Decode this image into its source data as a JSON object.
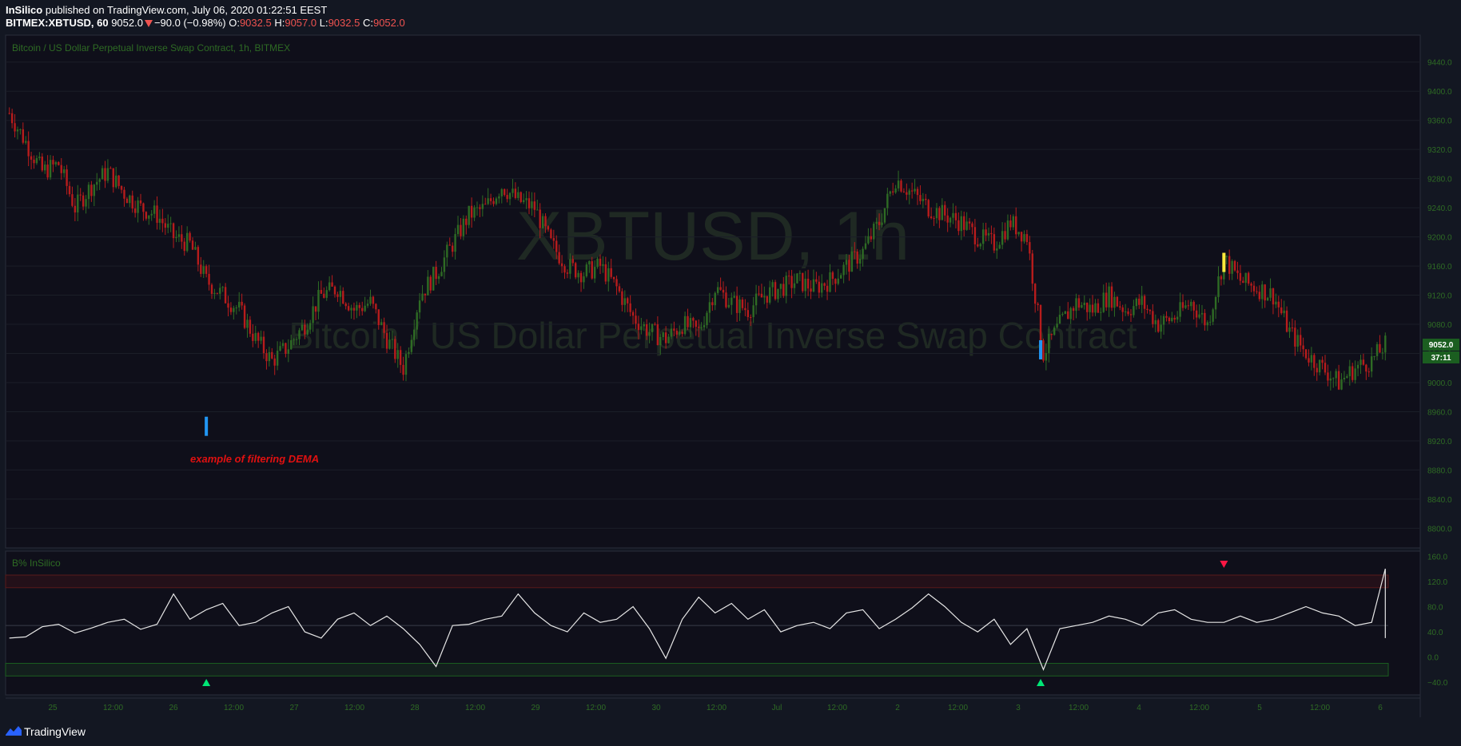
{
  "header": {
    "author": "InSilico",
    "published": "published on TradingView.com, July 06, 2020 01:22:51 EEST",
    "symbol": "BITMEX:XBTUSD, 60",
    "last": "9052.0",
    "change": "−90.0 (−0.98%)",
    "o_label": "O:",
    "o_value": "9032.5",
    "h_label": "H:",
    "h_value": "9057.0",
    "l_label": "L:",
    "l_value": "9032.5",
    "c_label": "C:",
    "c_value": "9052.0"
  },
  "main_pane": {
    "legend": "Bitcoin / US Dollar Perpetual Inverse Swap Contract, 1h, BITMEX",
    "watermark_symbol": "XBTUSD, 1h",
    "watermark_desc": "Bitcoin / US Dollar Perpetual Inverse Swap Contract",
    "annotation": "example of filtering  DEMA",
    "price_tag": "9052.0",
    "countdown": "37:11"
  },
  "indicator_pane": {
    "legend": "B% InSilico"
  },
  "footer": {
    "brand": "TradingView"
  },
  "colors": {
    "background": "#131722",
    "up": "#2e6b24",
    "down": "#b71c1c",
    "indicator_line": "#e6e6e6",
    "upper_band": "#ef5350",
    "lower_band": "#26a69a",
    "buy_signal": "#00e676",
    "sell_signal": "#ff1744",
    "annotation": "#e01010"
  },
  "chart_data": [
    {
      "type": "candlestick",
      "title": "Bitcoin / US Dollar Perpetual Inverse Swap Contract, 1h, BITMEX",
      "y_ticks": [
        8800,
        8840,
        8880,
        8920,
        8960,
        9000,
        9040,
        9080,
        9120,
        9160,
        9200,
        9240,
        9280,
        9320,
        9360,
        9400,
        9440
      ],
      "y_tick_labels": [
        "8800.0",
        "8840.0",
        "8880.0",
        "8920.0",
        "8960.0",
        "9000.0",
        "9040.0",
        "9080.0",
        "9120.0",
        "9160.0",
        "9200.0",
        "9240.0",
        "9280.0",
        "9320.0",
        "9360.0",
        "9400.0",
        "9440.0"
      ],
      "ylim": [
        8773,
        9477
      ],
      "x_tick_labels": [
        "25",
        "12:00",
        "26",
        "12:00",
        "27",
        "12:00",
        "28",
        "12:00",
        "29",
        "12:00",
        "30",
        "12:00",
        "Jul",
        "12:00",
        "2",
        "12:00",
        "3",
        "12:00",
        "4",
        "12:00",
        "5",
        "12:00",
        "6"
      ],
      "close_path": [
        [
          0,
          9370
        ],
        [
          6,
          9330
        ],
        [
          12,
          9290
        ],
        [
          18,
          9300
        ],
        [
          24,
          9240
        ],
        [
          30,
          9270
        ],
        [
          36,
          9290
        ],
        [
          42,
          9260
        ],
        [
          48,
          9240
        ],
        [
          54,
          9230
        ],
        [
          60,
          9200
        ],
        [
          66,
          9190
        ],
        [
          72,
          9140
        ],
        [
          78,
          9120
        ],
        [
          84,
          9100
        ],
        [
          90,
          9060
        ],
        [
          96,
          9030
        ],
        [
          102,
          9050
        ],
        [
          108,
          9080
        ],
        [
          114,
          9120
        ],
        [
          120,
          9130
        ],
        [
          126,
          9100
        ],
        [
          132,
          9110
        ],
        [
          138,
          9060
        ],
        [
          144,
          9020
        ],
        [
          150,
          9120
        ],
        [
          156,
          9150
        ],
        [
          162,
          9190
        ],
        [
          168,
          9230
        ],
        [
          174,
          9240
        ],
        [
          180,
          9270
        ],
        [
          186,
          9250
        ],
        [
          192,
          9240
        ],
        [
          198,
          9190
        ],
        [
          204,
          9160
        ],
        [
          210,
          9150
        ],
        [
          216,
          9160
        ],
        [
          222,
          9130
        ],
        [
          228,
          9090
        ],
        [
          234,
          9070
        ],
        [
          240,
          9060
        ],
        [
          246,
          9080
        ],
        [
          252,
          9070
        ],
        [
          258,
          9130
        ],
        [
          264,
          9110
        ],
        [
          270,
          9100
        ],
        [
          276,
          9120
        ],
        [
          282,
          9130
        ],
        [
          288,
          9140
        ],
        [
          294,
          9130
        ],
        [
          300,
          9140
        ],
        [
          306,
          9160
        ],
        [
          312,
          9180
        ],
        [
          318,
          9220
        ],
        [
          324,
          9280
        ],
        [
          330,
          9260
        ],
        [
          336,
          9240
        ],
        [
          342,
          9230
        ],
        [
          348,
          9220
        ],
        [
          354,
          9200
        ],
        [
          360,
          9190
        ],
        [
          366,
          9220
        ],
        [
          372,
          9200
        ],
        [
          378,
          9040
        ],
        [
          384,
          9080
        ],
        [
          390,
          9110
        ],
        [
          396,
          9100
        ],
        [
          402,
          9120
        ],
        [
          408,
          9100
        ],
        [
          414,
          9110
        ],
        [
          420,
          9080
        ],
        [
          426,
          9090
        ],
        [
          432,
          9110
        ],
        [
          438,
          9080
        ],
        [
          444,
          9170
        ],
        [
          450,
          9140
        ],
        [
          456,
          9130
        ],
        [
          462,
          9120
        ],
        [
          468,
          9070
        ],
        [
          474,
          9040
        ],
        [
          480,
          9020
        ],
        [
          486,
          9000
        ],
        [
          492,
          9020
        ],
        [
          498,
          9030
        ],
        [
          503,
          9052
        ]
      ],
      "annotated_bars": [
        {
          "x": 72,
          "price": 8940,
          "signal": "buy"
        },
        {
          "x": 377,
          "price": 9045,
          "signal": "buy"
        },
        {
          "x": 444,
          "price": 9165,
          "signal": "sell"
        }
      ]
    },
    {
      "type": "line",
      "title": "B% InSilico",
      "y_ticks": [
        -40,
        0,
        40,
        80,
        120,
        160
      ],
      "y_tick_labels": [
        "−40.0",
        "0.0",
        "40.0",
        "80.0",
        "120.0",
        "160.0"
      ],
      "ylim": [
        -60,
        168
      ],
      "bands": {
        "upper": [
          110,
          130
        ],
        "mid": 50,
        "lower": [
          -30,
          -10
        ]
      },
      "values_sample_step": 6,
      "values": [
        30,
        32,
        48,
        52,
        38,
        46,
        55,
        60,
        44,
        52,
        100,
        60,
        75,
        85,
        50,
        55,
        70,
        80,
        40,
        30,
        60,
        70,
        50,
        65,
        45,
        20,
        -15,
        50,
        52,
        60,
        65,
        100,
        70,
        50,
        40,
        70,
        55,
        60,
        80,
        45,
        -2,
        60,
        95,
        70,
        85,
        60,
        75,
        40,
        50,
        55,
        45,
        70,
        75,
        45,
        60,
        78,
        100,
        80,
        55,
        40,
        60,
        20,
        45,
        -20,
        45,
        50,
        55,
        65,
        60,
        50,
        70,
        75,
        60,
        55,
        55,
        65,
        55,
        60,
        70,
        80,
        70,
        65,
        50,
        55,
        140,
        75,
        60,
        40,
        35,
        45,
        30,
        55,
        60,
        52,
        72
      ]
    }
  ]
}
